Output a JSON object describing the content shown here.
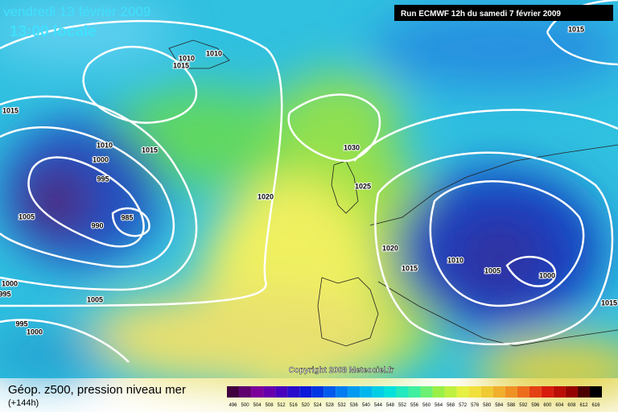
{
  "header": {
    "date": "vendredi 13 février 2009",
    "time": "13:00 locale",
    "run": "Run ECMWF 12h du samedi 7 février 2009"
  },
  "isobar_labels": [
    1010,
    1010,
    1015,
    1015,
    1010,
    1015,
    1000,
    995,
    1005,
    990,
    985,
    1020,
    1030,
    1025,
    1020,
    1015,
    1010,
    1005,
    1000,
    1015,
    1015,
    1000,
    995,
    1005,
    995,
    1000
  ],
  "copyright": "Copyright 2008 Meteociel.fr",
  "footer": {
    "title": "Géop. z500, pression niveau mer",
    "lead": "(+144h)"
  },
  "legend": [
    496,
    500,
    504,
    508,
    512,
    516,
    520,
    524,
    528,
    532,
    536,
    540,
    544,
    548,
    552,
    556,
    560,
    564,
    568,
    572,
    576,
    580,
    584,
    588,
    592,
    596,
    600,
    604,
    608,
    612,
    616
  ]
}
